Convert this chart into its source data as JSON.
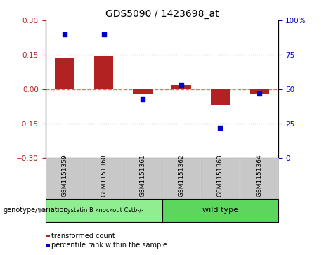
{
  "title": "GDS5090 / 1423698_at",
  "samples": [
    "GSM1151359",
    "GSM1151360",
    "GSM1151361",
    "GSM1151362",
    "GSM1151363",
    "GSM1151364"
  ],
  "red_bars": [
    0.135,
    0.145,
    -0.02,
    0.02,
    -0.07,
    -0.02
  ],
  "blue_dots": [
    90,
    90,
    43,
    53,
    22,
    47
  ],
  "ylim_left": [
    -0.3,
    0.3
  ],
  "ylim_right": [
    0,
    100
  ],
  "yticks_left": [
    -0.3,
    -0.15,
    0.0,
    0.15,
    0.3
  ],
  "yticks_right": [
    0,
    25,
    50,
    75,
    100
  ],
  "group1_label": "cystatin B knockout Cstb-/-",
  "group2_label": "wild type",
  "group1_indices": [
    0,
    1,
    2
  ],
  "group2_indices": [
    3,
    4,
    5
  ],
  "group1_color": "#90EE90",
  "group2_color": "#5CD65C",
  "sample_box_color": "#C8C8C8",
  "bar_color": "#B22222",
  "dot_color": "#0000CD",
  "legend_label_red": "transformed count",
  "legend_label_blue": "percentile rank within the sample",
  "genotype_label": "genotype/variation",
  "zero_line_color": "#FF6666",
  "grid_color": "#000000",
  "title_fontsize": 10,
  "tick_fontsize": 7.5,
  "label_fontsize": 8
}
